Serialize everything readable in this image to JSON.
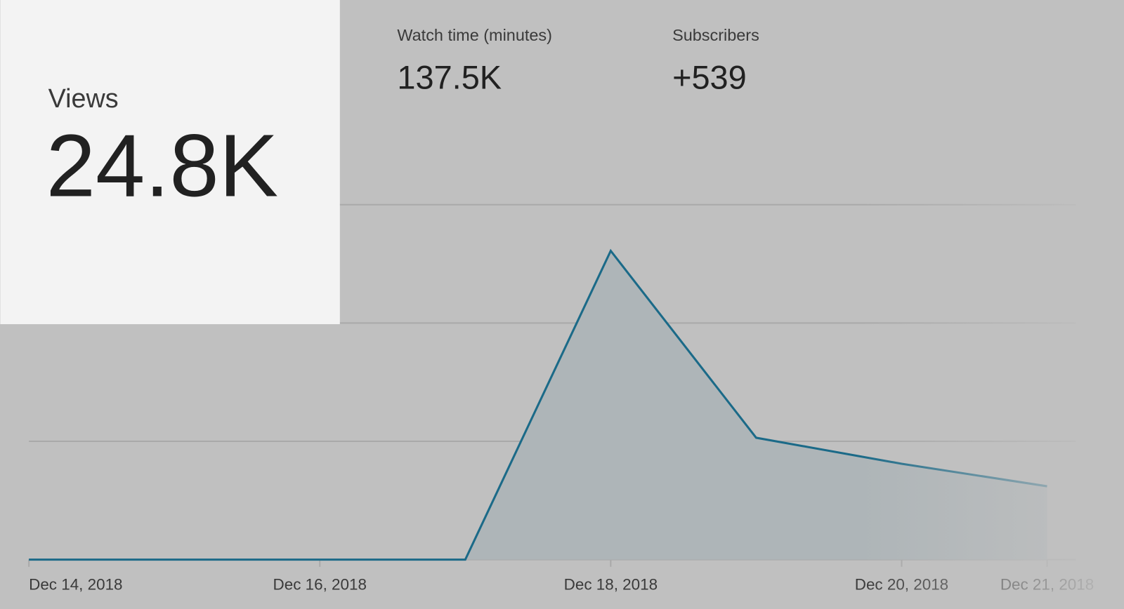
{
  "metrics": [
    {
      "label": "Views",
      "value": "24.8K"
    },
    {
      "label": "Watch time (minutes)",
      "value": "137.5K"
    },
    {
      "label": "Subscribers",
      "value": "+539"
    }
  ],
  "chart_data": {
    "type": "area",
    "categories": [
      "Dec 14, 2018",
      null,
      "Dec 16, 2018",
      null,
      "Dec 18, 2018",
      null,
      "Dec 20, 2018",
      "Dec 21, 2018"
    ],
    "values": [
      0,
      0,
      0,
      0,
      2.61,
      1.03,
      0.81,
      0.62
    ],
    "color": "#1b6a88",
    "fill": "#aeb5b8",
    "ylim": [
      0,
      3
    ],
    "yticks": [
      0,
      1,
      2,
      3
    ],
    "grid": true
  }
}
